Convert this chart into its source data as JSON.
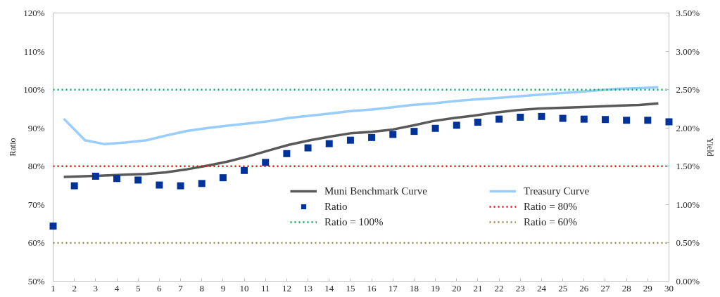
{
  "chart_data": {
    "type": "line",
    "ylabel": "Ratio",
    "y2label": "Yield",
    "xlim": [
      1,
      30
    ],
    "xticks": [
      1,
      2,
      3,
      4,
      5,
      6,
      7,
      8,
      9,
      10,
      11,
      12,
      13,
      14,
      15,
      16,
      17,
      18,
      19,
      20,
      21,
      22,
      23,
      24,
      25,
      26,
      27,
      28,
      29,
      30
    ],
    "ylim": [
      50,
      120
    ],
    "yticks": [
      {
        "value": 50,
        "label": "50%"
      },
      {
        "value": 60,
        "label": "60%"
      },
      {
        "value": 70,
        "label": "70%"
      },
      {
        "value": 80,
        "label": "80%"
      },
      {
        "value": 90,
        "label": "90%"
      },
      {
        "value": 100,
        "label": "100%"
      },
      {
        "value": 110,
        "label": "110%"
      },
      {
        "value": 120,
        "label": "120%"
      }
    ],
    "y2lim": [
      0,
      3.5
    ],
    "y2ticks": [
      {
        "value": 0,
        "label": "0.00%"
      },
      {
        "value": 0.5,
        "label": "0.50%"
      },
      {
        "value": 1,
        "label": "1.00%"
      },
      {
        "value": 1.5,
        "label": "1.50%"
      },
      {
        "value": 2,
        "label": "2.00%"
      },
      {
        "value": 2.5,
        "label": "2.50%"
      },
      {
        "value": 3,
        "label": "3.00%"
      },
      {
        "value": 3.5,
        "label": "3.50%"
      }
    ],
    "grid": false,
    "legend": "bottom",
    "series": [
      {
        "name": "Muni Benchmark Curve",
        "axis": "y2",
        "color": "#595959",
        "x": [
          1.5,
          2.5,
          3.4,
          4.4,
          5.4,
          6.3,
          7.3,
          8.3,
          9.2,
          10.2,
          11.2,
          12.1,
          13.1,
          14.1,
          15.0,
          16.0,
          17.0,
          17.9,
          18.9,
          19.9,
          20.8,
          21.8,
          22.8,
          23.7,
          24.7,
          25.7,
          26.6,
          27.6,
          28.6,
          29.5
        ],
        "values": [
          1.36,
          1.37,
          1.38,
          1.39,
          1.4,
          1.42,
          1.46,
          1.51,
          1.56,
          1.63,
          1.71,
          1.78,
          1.84,
          1.89,
          1.93,
          1.95,
          1.98,
          2.03,
          2.09,
          2.13,
          2.16,
          2.2,
          2.23,
          2.25,
          2.26,
          2.27,
          2.28,
          2.29,
          2.3,
          2.32
        ]
      },
      {
        "name": "Treasury Curve",
        "axis": "y2",
        "color": "#99ccff",
        "x": [
          1.5,
          2.5,
          3.4,
          4.4,
          5.4,
          6.3,
          7.3,
          8.3,
          9.2,
          10.2,
          11.2,
          12.1,
          13.1,
          14.1,
          15.0,
          16.0,
          17.0,
          17.9,
          18.9,
          19.9,
          20.8,
          21.8,
          22.8,
          23.7,
          24.7,
          25.7,
          26.6,
          27.6,
          28.6,
          29.5
        ],
        "values": [
          2.12,
          1.84,
          1.79,
          1.81,
          1.84,
          1.9,
          1.96,
          2.0,
          2.03,
          2.06,
          2.09,
          2.13,
          2.16,
          2.19,
          2.22,
          2.24,
          2.27,
          2.3,
          2.32,
          2.35,
          2.37,
          2.39,
          2.41,
          2.43,
          2.45,
          2.47,
          2.49,
          2.51,
          2.52,
          2.53
        ]
      },
      {
        "name": "Ratio",
        "type": "scatter",
        "marker": "square",
        "color": "#003399",
        "x": [
          1,
          2,
          3,
          4,
          5,
          6,
          7,
          8,
          9,
          10,
          11,
          12,
          13,
          14,
          15,
          16,
          17,
          18,
          19,
          20,
          21,
          22,
          23,
          24,
          25,
          26,
          27,
          28,
          29,
          30
        ],
        "values": [
          64.4,
          74.9,
          77.4,
          76.8,
          76.4,
          75.1,
          74.9,
          75.5,
          77.0,
          78.9,
          81.0,
          83.3,
          84.8,
          85.9,
          86.8,
          87.5,
          88.3,
          89.1,
          89.9,
          90.7,
          91.5,
          92.3,
          92.8,
          93.0,
          92.5,
          92.3,
          92.2,
          92.0,
          92.0,
          91.6
        ]
      }
    ],
    "ref_lines": [
      {
        "axis": "y",
        "value": 80,
        "label": "Ratio = 80%",
        "color": "#ff0000",
        "line_style": "dotted"
      },
      {
        "axis": "y",
        "value": 100,
        "label": "Ratio = 100%",
        "color": "#00b050",
        "line_style": "dotted"
      },
      {
        "axis": "y",
        "value": 60,
        "label": "Ratio = 60%",
        "color": "#948a54",
        "line_style": "dotted"
      }
    ]
  }
}
